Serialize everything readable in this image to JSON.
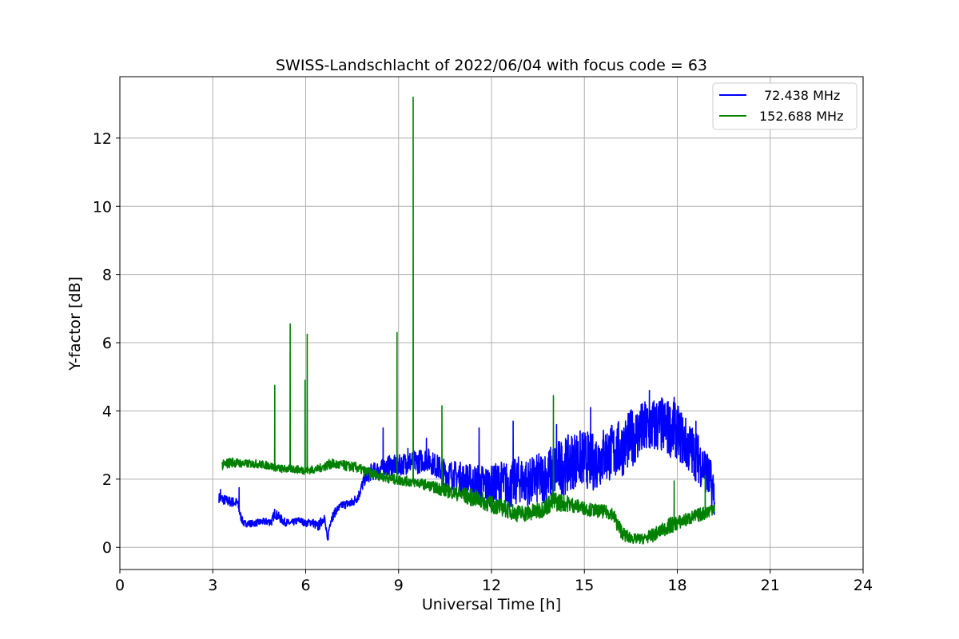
{
  "chart_data": {
    "type": "line",
    "title": "SWISS-Landschlacht of 2022/06/04 with focus code = 63",
    "xlabel": "Universal Time [h]",
    "ylabel": "Y-factor [dB]",
    "xlim": [
      0,
      24
    ],
    "ylim": [
      -0.65,
      13.8
    ],
    "xticks": [
      0,
      3,
      6,
      9,
      12,
      15,
      18,
      21,
      24
    ],
    "xtick_labels": [
      "0",
      "3",
      "6",
      "9",
      "12",
      "15",
      "18",
      "21",
      "24"
    ],
    "yticks": [
      0,
      2,
      4,
      6,
      8,
      10,
      12
    ],
    "ytick_labels": [
      "0",
      "2",
      "4",
      "6",
      "8",
      "10",
      "12"
    ],
    "grid": true,
    "legend_position": "top-right",
    "series": [
      {
        "name": "72.438 MHz",
        "color": "#0000ff",
        "x": [
          3.2,
          3.5,
          3.8,
          3.9,
          4.0,
          4.3,
          4.6,
          4.9,
          5.0,
          5.3,
          5.5,
          5.8,
          6.0,
          6.2,
          6.4,
          6.6,
          6.7,
          6.8,
          7.0,
          7.2,
          7.5,
          7.7,
          7.9,
          8.1,
          8.4,
          8.7,
          9.0,
          9.3,
          9.6,
          9.9,
          10.2,
          10.5,
          10.8,
          11.1,
          11.4,
          11.7,
          12.0,
          12.3,
          12.6,
          12.9,
          13.2,
          13.5,
          13.8,
          14.1,
          14.4,
          14.7,
          15.0,
          15.3,
          15.6,
          15.9,
          16.2,
          16.5,
          16.8,
          17.1,
          17.4,
          17.7,
          18.0,
          18.3,
          18.6,
          18.9,
          19.2
        ],
        "y": [
          1.45,
          1.35,
          1.3,
          0.9,
          0.7,
          0.7,
          0.75,
          0.75,
          1.0,
          0.75,
          0.7,
          0.8,
          0.7,
          0.75,
          0.6,
          0.9,
          0.2,
          0.8,
          1.1,
          1.25,
          1.3,
          1.5,
          2.0,
          2.2,
          2.3,
          2.4,
          2.4,
          2.5,
          2.5,
          2.6,
          2.4,
          2.2,
          2.1,
          2.0,
          1.9,
          1.85,
          1.8,
          1.9,
          1.8,
          2.0,
          1.9,
          2.0,
          2.1,
          2.3,
          2.4,
          2.6,
          2.6,
          2.5,
          2.7,
          2.8,
          2.9,
          3.2,
          3.4,
          3.5,
          3.6,
          3.5,
          3.4,
          3.0,
          2.7,
          2.3,
          1.6
        ],
        "noise": [
          0.15,
          0.15,
          0.15,
          0.12,
          0.1,
          0.1,
          0.1,
          0.12,
          0.15,
          0.12,
          0.1,
          0.1,
          0.1,
          0.12,
          0.15,
          0.15,
          0.15,
          0.15,
          0.12,
          0.12,
          0.15,
          0.15,
          0.2,
          0.25,
          0.25,
          0.3,
          0.3,
          0.35,
          0.35,
          0.35,
          0.35,
          0.4,
          0.45,
          0.5,
          0.55,
          0.6,
          0.6,
          0.65,
          0.7,
          0.7,
          0.7,
          0.75,
          0.8,
          0.85,
          0.85,
          0.85,
          0.85,
          0.85,
          0.85,
          0.85,
          0.85,
          0.85,
          0.85,
          0.85,
          0.85,
          0.85,
          0.8,
          0.8,
          0.75,
          0.7,
          0.7
        ],
        "spikes": [
          [
            3.25,
            1.7
          ],
          [
            3.85,
            1.75
          ],
          [
            8.5,
            3.5
          ],
          [
            9.3,
            2.9
          ],
          [
            9.9,
            3.2
          ],
          [
            11.6,
            3.5
          ],
          [
            12.7,
            3.7
          ],
          [
            14.1,
            3.6
          ],
          [
            15.2,
            4.1
          ],
          [
            17.1,
            4.6
          ],
          [
            17.9,
            4.4
          ],
          [
            18.6,
            3.7
          ]
        ]
      },
      {
        "name": "152.688 MHz",
        "color": "#008000",
        "x": [
          3.3,
          3.6,
          4.0,
          4.4,
          4.8,
          5.2,
          5.6,
          6.0,
          6.4,
          6.8,
          7.2,
          7.6,
          8.0,
          8.4,
          8.8,
          9.2,
          9.6,
          10.0,
          10.4,
          10.8,
          11.2,
          11.6,
          12.0,
          12.4,
          12.8,
          13.2,
          13.6,
          14.0,
          14.4,
          14.8,
          15.2,
          15.6,
          15.9,
          16.1,
          16.3,
          16.6,
          16.9,
          17.2,
          17.5,
          17.8,
          18.1,
          18.4,
          18.7,
          19.0,
          19.2
        ],
        "y": [
          2.4,
          2.5,
          2.45,
          2.45,
          2.4,
          2.3,
          2.3,
          2.25,
          2.3,
          2.45,
          2.4,
          2.35,
          2.2,
          2.1,
          2.0,
          1.95,
          1.9,
          1.8,
          1.7,
          1.6,
          1.5,
          1.4,
          1.25,
          1.15,
          1.0,
          1.0,
          1.1,
          1.35,
          1.3,
          1.2,
          1.1,
          1.05,
          1.0,
          0.6,
          0.35,
          0.25,
          0.25,
          0.35,
          0.5,
          0.65,
          0.75,
          0.85,
          0.95,
          1.05,
          1.2
        ],
        "noise": [
          0.15,
          0.15,
          0.12,
          0.12,
          0.12,
          0.12,
          0.12,
          0.12,
          0.12,
          0.15,
          0.15,
          0.15,
          0.15,
          0.15,
          0.15,
          0.15,
          0.15,
          0.15,
          0.2,
          0.2,
          0.25,
          0.25,
          0.25,
          0.25,
          0.25,
          0.25,
          0.25,
          0.3,
          0.25,
          0.2,
          0.2,
          0.2,
          0.2,
          0.25,
          0.2,
          0.15,
          0.15,
          0.2,
          0.2,
          0.25,
          0.2,
          0.2,
          0.2,
          0.2,
          0.2
        ],
        "spikes": [
          [
            5.0,
            4.75
          ],
          [
            5.5,
            6.55
          ],
          [
            5.98,
            4.9
          ],
          [
            6.05,
            6.25
          ],
          [
            8.95,
            6.3
          ],
          [
            9.47,
            13.2
          ],
          [
            10.4,
            4.15
          ],
          [
            14.0,
            4.45
          ],
          [
            17.9,
            1.95
          ],
          [
            18.9,
            2.1
          ]
        ]
      }
    ]
  }
}
